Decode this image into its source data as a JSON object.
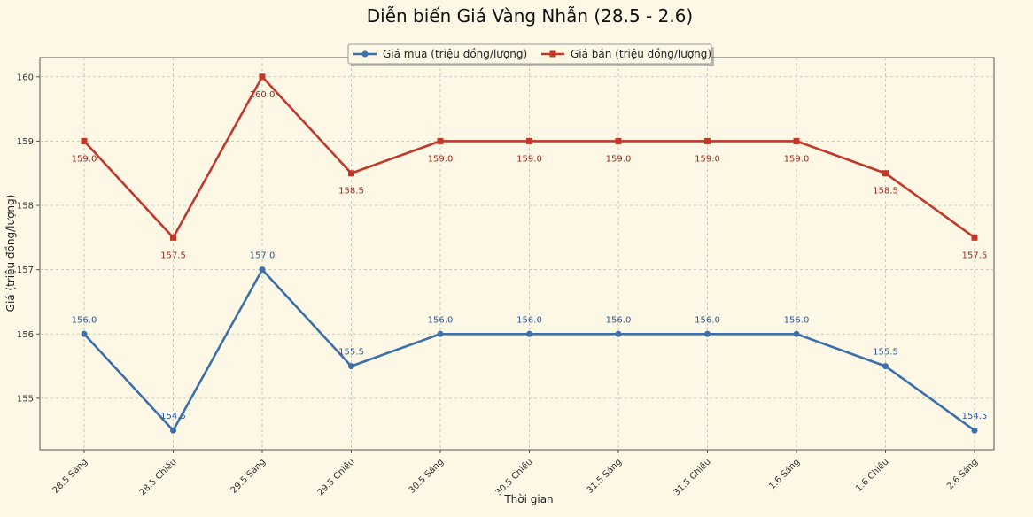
{
  "chart_data": {
    "type": "line",
    "title": "Diễn biến Giá Vàng Nhẫn (28.5 - 2.6)",
    "xlabel": "Thời gian",
    "ylabel": "Giá (triệu đồng/lượng)",
    "categories": [
      "28.5 Sáng",
      "28.5 Chiều",
      "29.5 Sáng",
      "29.5 Chiều",
      "30.5 Sáng",
      "30.5 Chiều",
      "31.5 Sáng",
      "31.5 Chiều",
      "1.6 Sáng",
      "1.6 Chiều",
      "2.6 Sáng"
    ],
    "ylim": [
      154.2,
      160.3
    ],
    "yticks": [
      155,
      156,
      157,
      158,
      159,
      160
    ],
    "grid": true,
    "legend_position": "top-center",
    "series": [
      {
        "name": "Giá mua (triệu đồng/lượng)",
        "color": "#3d6fa8",
        "marker": "circle",
        "label_position": "above",
        "values": [
          156.0,
          154.5,
          157.0,
          155.5,
          156.0,
          156.0,
          156.0,
          156.0,
          156.0,
          155.5,
          154.5
        ],
        "labels": [
          "156.0",
          "154.5",
          "157.0",
          "155.5",
          "156.0",
          "156.0",
          "156.0",
          "156.0",
          "156.0",
          "155.5",
          "154.5"
        ]
      },
      {
        "name": "Giá bán (triệu đồng/lượng)",
        "color": "#c0392b",
        "marker": "square",
        "label_position": "below",
        "values": [
          159.0,
          157.5,
          160.0,
          158.5,
          159.0,
          159.0,
          159.0,
          159.0,
          159.0,
          158.5,
          157.5
        ],
        "labels": [
          "159.0",
          "157.5",
          "160.0",
          "158.5",
          "159.0",
          "159.0",
          "159.0",
          "159.0",
          "159.0",
          "158.5",
          "157.5"
        ]
      }
    ]
  }
}
